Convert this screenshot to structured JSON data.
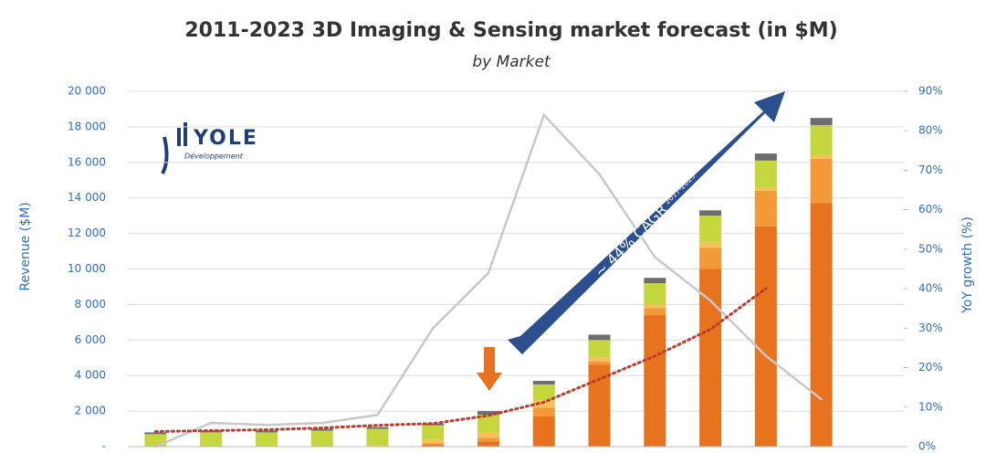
{
  "chart_data": {
    "type": "bar",
    "title": "2011-2023 3D Imaging & Sensing market forecast (in $M)",
    "subtitle": "by Market",
    "ylabel": "Revenue ($M)",
    "y2label": "YoY growth (%)",
    "annotation": "~ 44% CAGR",
    "annotation_period": "2017-2023",
    "logo": {
      "name": "YOLE",
      "tagline": "Développement"
    },
    "categories": [
      null,
      null,
      null,
      null,
      null,
      null,
      null,
      null,
      null,
      null,
      null,
      null,
      null
    ],
    "ylim": [
      0,
      20000
    ],
    "yticks": [
      {
        "value": 0,
        "label": "-"
      },
      {
        "value": 2000,
        "label": "2 000"
      },
      {
        "value": 4000,
        "label": "4 000"
      },
      {
        "value": 6000,
        "label": "6 000"
      },
      {
        "value": 8000,
        "label": "8 000"
      },
      {
        "value": 10000,
        "label": "10 000"
      },
      {
        "value": 12000,
        "label": "12 000"
      },
      {
        "value": 14000,
        "label": "14 000"
      },
      {
        "value": 16000,
        "label": "16 000"
      },
      {
        "value": 18000,
        "label": "18 000"
      },
      {
        "value": 20000,
        "label": "20 000"
      }
    ],
    "y2lim": [
      0,
      90
    ],
    "y2ticks": [
      {
        "value": 0,
        "label": "0%"
      },
      {
        "value": 10,
        "label": "10%"
      },
      {
        "value": 20,
        "label": "20%"
      },
      {
        "value": 30,
        "label": "30%"
      },
      {
        "value": 40,
        "label": "40%"
      },
      {
        "value": 50,
        "label": "50%"
      },
      {
        "value": 60,
        "label": "60%"
      },
      {
        "value": 70,
        "label": "70%"
      },
      {
        "value": 80,
        "label": "80%"
      },
      {
        "value": 90,
        "label": "90%"
      }
    ],
    "grid": true,
    "series": [
      {
        "color": "#e8731f",
        "values": [
          0,
          0,
          0,
          0,
          0,
          100,
          300,
          1700,
          4600,
          7400,
          10000,
          12400,
          13700
        ]
      },
      {
        "color": "#f29a38",
        "values": [
          0,
          0,
          0,
          0,
          0,
          100,
          200,
          500,
          200,
          400,
          1200,
          2000,
          2500
        ]
      },
      {
        "color": "#f7c05a",
        "values": [
          0,
          0,
          0,
          0,
          100,
          200,
          300,
          400,
          200,
          200,
          300,
          200,
          200
        ]
      },
      {
        "color": "#c5d63f",
        "values": [
          700,
          800,
          800,
          900,
          900,
          800,
          1000,
          900,
          1000,
          1200,
          1500,
          1500,
          1700
        ]
      },
      {
        "color": "#6d6d6d",
        "values": [
          100,
          100,
          100,
          100,
          100,
          100,
          200,
          200,
          300,
          300,
          300,
          400,
          400
        ]
      },
      {
        "type": "line",
        "axis": "y2",
        "color": "#c8c8c8",
        "values": [
          0,
          6,
          5.5,
          6,
          8,
          30,
          44,
          84,
          69,
          48,
          37,
          23,
          12
        ]
      },
      {
        "type": "line",
        "dotted": true,
        "color": "#c0392b",
        "values": [
          850,
          900,
          950,
          1050,
          1200,
          1300,
          1750,
          2500,
          3800,
          5100,
          6600,
          8900,
          null
        ]
      }
    ]
  }
}
